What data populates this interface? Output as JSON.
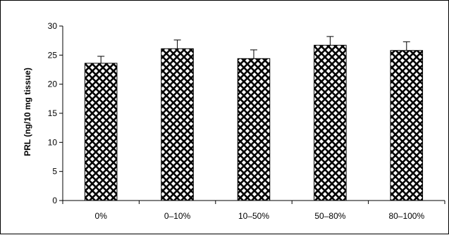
{
  "chart_data": {
    "type": "bar",
    "title": "",
    "xlabel": "",
    "ylabel": "PRL (ng/10 mg tissue)",
    "categories": [
      "0%",
      "0–10%",
      "10–50%",
      "50–80%",
      "80–100%"
    ],
    "values": [
      23.6,
      26.1,
      24.4,
      26.7,
      25.8
    ],
    "error": [
      1.2,
      1.5,
      1.5,
      1.5,
      1.5
    ],
    "ylim": [
      0,
      30
    ],
    "yticks": [
      "0",
      "5",
      "10",
      "15",
      "20",
      "25",
      "30"
    ],
    "grid": false,
    "legend": "none",
    "bar_fill": "crosshatch",
    "colors": {
      "bar_stroke": "#000000",
      "bar_background": "#ffffff",
      "axis": "#000000"
    }
  }
}
